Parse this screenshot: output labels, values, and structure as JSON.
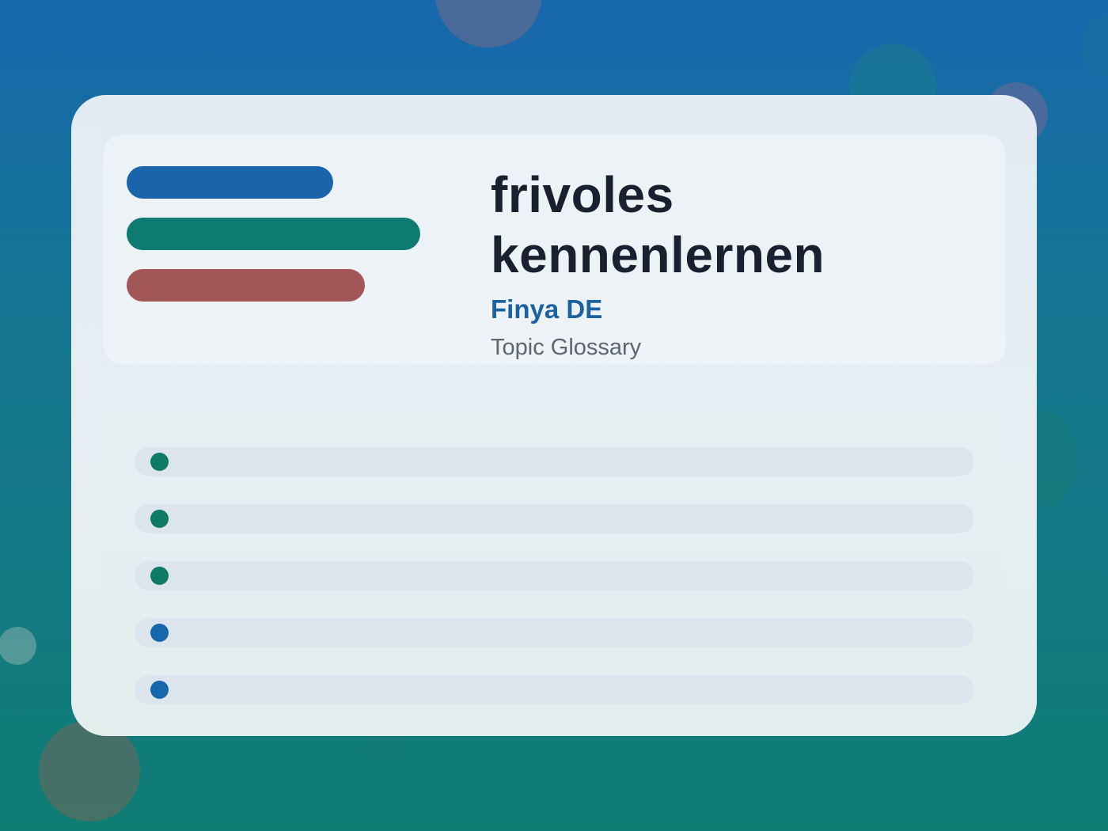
{
  "background": {
    "gradient_top": "#1767ad",
    "gradient_bottom": "#0f7d74"
  },
  "header": {
    "title": "frivoles kennenlernen",
    "brand": "Finya DE",
    "subtitle": "Topic Glossary"
  },
  "legend_bars": [
    {
      "color": "#1a64ac"
    },
    {
      "color": "#0e7c72"
    },
    {
      "color": "#a85555"
    }
  ],
  "list_items": [
    {
      "dot_color": "#0e7c66"
    },
    {
      "dot_color": "#0e7c66"
    },
    {
      "dot_color": "#0e7c66"
    },
    {
      "dot_color": "#1767ad"
    },
    {
      "dot_color": "#1767ad"
    }
  ]
}
